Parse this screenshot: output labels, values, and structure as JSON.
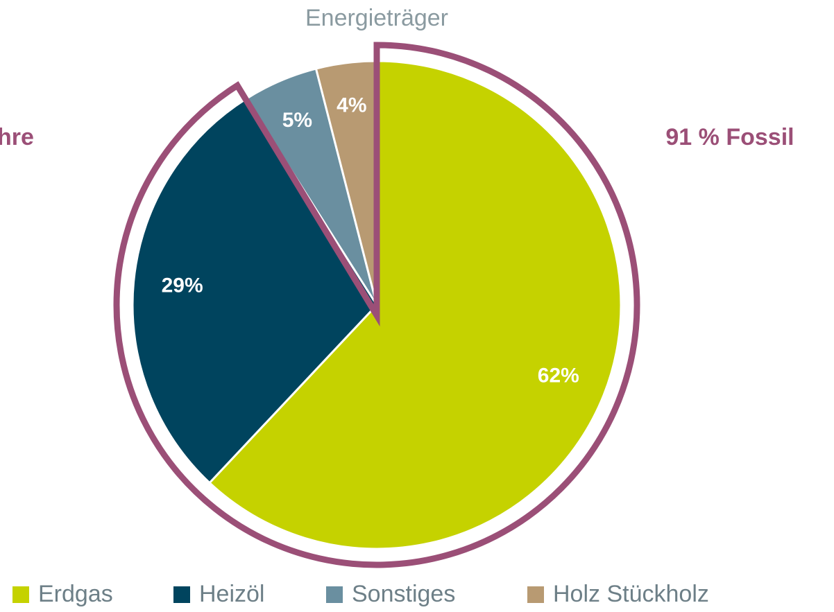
{
  "chart_data": {
    "type": "pie",
    "title": "Energieträger",
    "categories": [
      "Erdgas",
      "Heizöl",
      "Sonstiges",
      "Holz Stückholz"
    ],
    "values": [
      62,
      29,
      5,
      4
    ],
    "value_labels": [
      "62%",
      "29%",
      "5%",
      "4%"
    ],
    "colors": [
      "#c5d200",
      "#00445e",
      "#6a8fa0",
      "#b89a72"
    ],
    "annotations": [
      "91 % Fossil",
      "hre"
    ],
    "legend": "bottom"
  }
}
